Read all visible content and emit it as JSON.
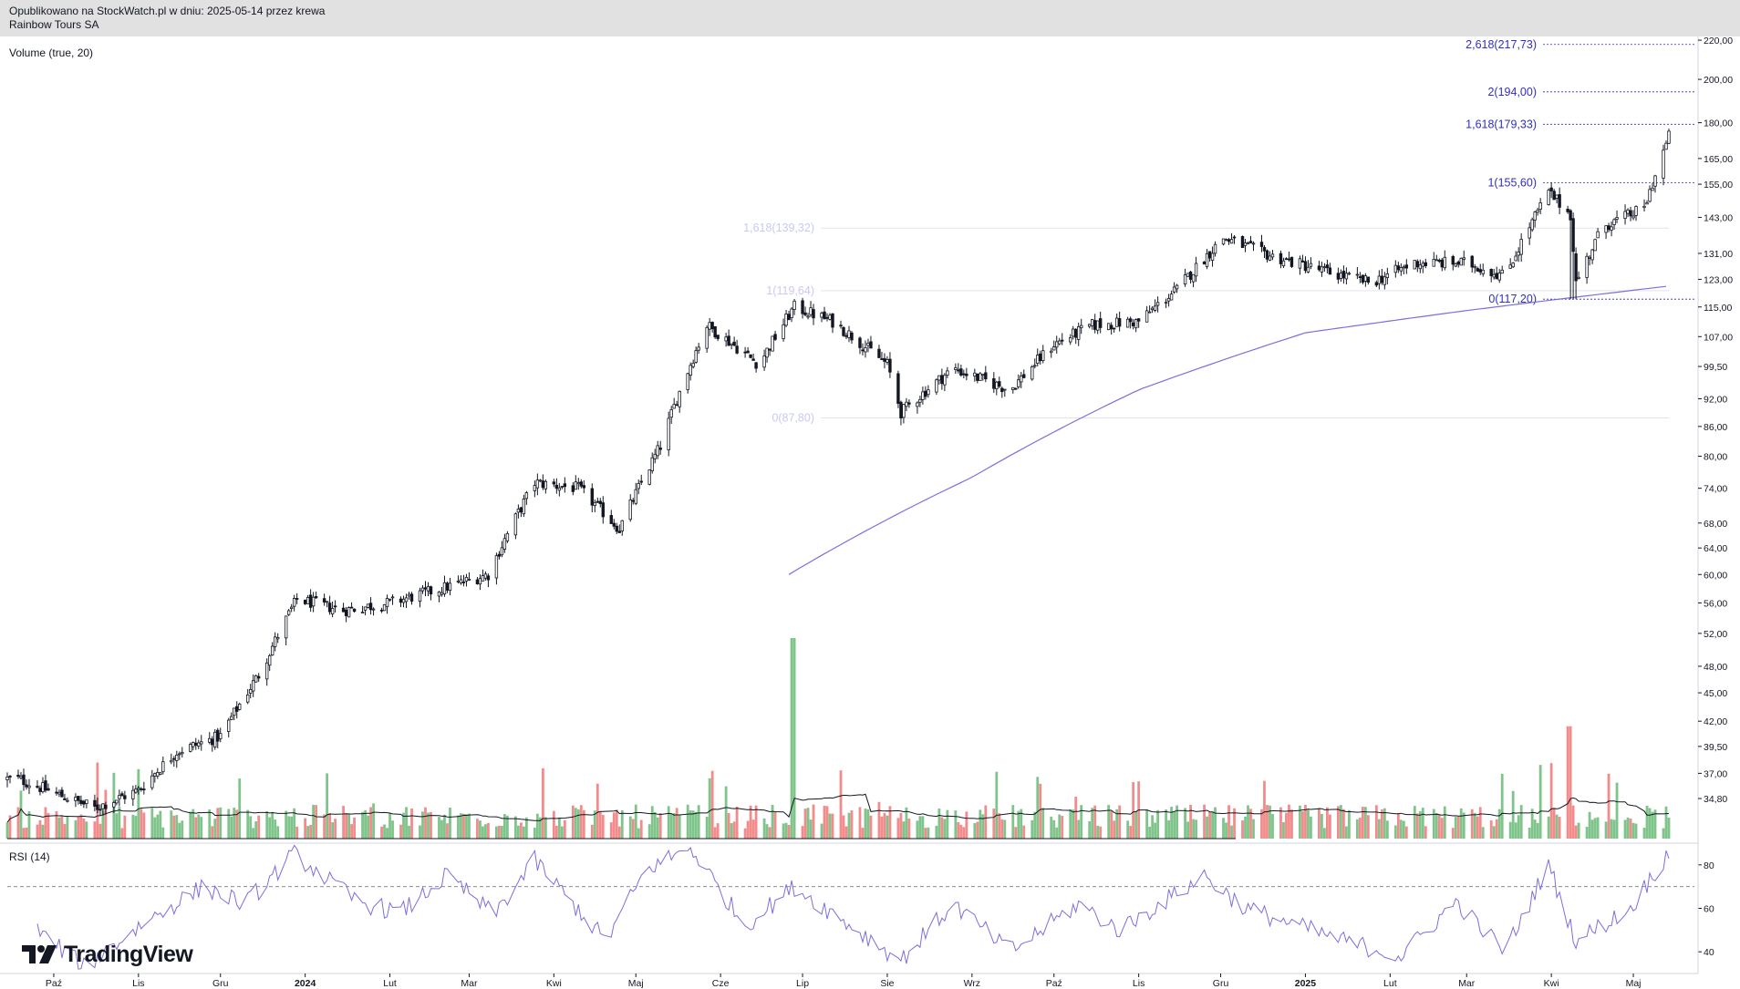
{
  "header": {
    "published": "Opublikowano na StockWatch.pl w dniu: 2025-05-14 przez krewa",
    "symbol": "Rainbow Tours SA"
  },
  "indicators": {
    "volume_label": "Volume (true, 20)",
    "rsi_label": "RSI (14)"
  },
  "logo": {
    "text": "TradingView",
    "icon": "tradingview-logo-icon"
  },
  "colors": {
    "up": "#26a69a",
    "down": "#ef5350",
    "volume_up": "#7fc48a",
    "volume_down": "#f28b8b",
    "ma_line": "#7b6fdd",
    "rsi_line": "#7b6fdd",
    "fib_old": "#c9c9f2",
    "fib_new": "#2f2fc0",
    "candle": "#131722"
  },
  "chart_data": [
    {
      "type": "candlestick",
      "title": "Rainbow Tours SA",
      "x_tick_labels": [
        "Paź",
        "Lis",
        "Gru",
        "2024",
        "Lut",
        "Mar",
        "Kwi",
        "Maj",
        "Cze",
        "Lip",
        "Sie",
        "Wrz",
        "Paź",
        "Lis",
        "Gru",
        "2025",
        "Lut",
        "Mar",
        "Kwi",
        "Maj"
      ],
      "y_scale": "log",
      "y_tick_labels": [
        "220,00",
        "200,00",
        "180,00",
        "165,00",
        "155,00",
        "143,00",
        "131,00",
        "123,00",
        "115,00",
        "107,00",
        "99,50",
        "92,00",
        "86,00",
        "80,00",
        "74,00",
        "68,00",
        "64,00",
        "60,00",
        "56,00",
        "52,00",
        "48,00",
        "45,00",
        "42,00",
        "39,50",
        "37,00",
        "34,80"
      ],
      "ylim": [
        33.0,
        222.0
      ],
      "price_path": [
        {
          "date": "2023-09-18",
          "close": 36.5
        },
        {
          "date": "2023-10-02",
          "close": 35.2
        },
        {
          "date": "2023-10-16",
          "close": 34.0
        },
        {
          "date": "2023-11-01",
          "close": 35.5
        },
        {
          "date": "2023-11-15",
          "close": 39.0
        },
        {
          "date": "2023-12-01",
          "close": 40.5
        },
        {
          "date": "2023-12-15",
          "close": 47.0
        },
        {
          "date": "2023-12-29",
          "close": 56.5
        },
        {
          "date": "2024-01-15",
          "close": 55.0
        },
        {
          "date": "2024-02-01",
          "close": 56.0
        },
        {
          "date": "2024-02-20",
          "close": 58.0
        },
        {
          "date": "2024-03-08",
          "close": 60.0
        },
        {
          "date": "2024-03-25",
          "close": 75.0
        },
        {
          "date": "2024-04-10",
          "close": 74.0
        },
        {
          "date": "2024-04-25",
          "close": 67.0
        },
        {
          "date": "2024-05-10",
          "close": 82.0
        },
        {
          "date": "2024-05-27",
          "close": 110.0
        },
        {
          "date": "2024-06-15",
          "close": 100.0
        },
        {
          "date": "2024-06-28",
          "close": 115.0
        },
        {
          "date": "2024-07-12",
          "close": 111.0
        },
        {
          "date": "2024-08-01",
          "close": 100.0
        },
        {
          "date": "2024-08-06",
          "close": 89.0
        },
        {
          "date": "2024-08-25",
          "close": 99.0
        },
        {
          "date": "2024-09-15",
          "close": 94.0
        },
        {
          "date": "2024-10-01",
          "close": 105.0
        },
        {
          "date": "2024-10-15",
          "close": 110.0
        },
        {
          "date": "2024-11-01",
          "close": 111.0
        },
        {
          "date": "2024-11-15",
          "close": 120.0
        },
        {
          "date": "2024-12-02",
          "close": 136.0
        },
        {
          "date": "2024-12-20",
          "close": 130.0
        },
        {
          "date": "2025-01-10",
          "close": 125.0
        },
        {
          "date": "2025-01-25",
          "close": 122.0
        },
        {
          "date": "2025-02-10",
          "close": 128.0
        },
        {
          "date": "2025-03-01",
          "close": 128.0
        },
        {
          "date": "2025-03-15",
          "close": 124.0
        },
        {
          "date": "2025-03-31",
          "close": 152.0
        },
        {
          "date": "2025-04-08",
          "close": 144.0
        },
        {
          "date": "2025-04-10",
          "close": 122.0
        },
        {
          "date": "2025-04-20",
          "close": 140.0
        },
        {
          "date": "2025-05-05",
          "close": 146.0
        },
        {
          "date": "2025-05-14",
          "close": 174.0
        }
      ],
      "moving_average_200": {
        "start": "2024-06-26",
        "values": [
          {
            "date": "2024-06-26",
            "value": 60.0
          },
          {
            "date": "2024-09-01",
            "value": 76.0
          },
          {
            "date": "2024-11-01",
            "value": 94.0
          },
          {
            "date": "2025-01-01",
            "value": 108.0
          },
          {
            "date": "2025-03-01",
            "value": 114.0
          },
          {
            "date": "2025-05-14",
            "value": 121.0
          }
        ]
      },
      "fibonacci_old": [
        {
          "label": "1,618(139,32)",
          "value": 139.32
        },
        {
          "label": "1(119,64)",
          "value": 119.64
        },
        {
          "label": "0(87,80)",
          "value": 87.8
        }
      ],
      "fibonacci_new": [
        {
          "label": "2,618(217,73)",
          "value": 217.73
        },
        {
          "label": "2(194,00)",
          "value": 194.0
        },
        {
          "label": "1,618(179,33)",
          "value": 179.33
        },
        {
          "label": "1(155,60)",
          "value": 155.6
        },
        {
          "label": "0(117,20)",
          "value": 117.2
        }
      ],
      "notable_volume_spikes": [
        {
          "date": "2024-06-28",
          "relative_height": 1.0
        },
        {
          "date": "2025-04-07",
          "relative_height": 0.56
        }
      ]
    },
    {
      "type": "line",
      "title": "RSI (14)",
      "y_tick_labels": [
        "80",
        "60",
        "40"
      ],
      "ylim": [
        30,
        90
      ],
      "levels": [
        70,
        30
      ],
      "rsi_path": [
        {
          "date": "2023-09-25",
          "value": 50
        },
        {
          "date": "2023-10-12",
          "value": 33
        },
        {
          "date": "2023-11-05",
          "value": 55
        },
        {
          "date": "2023-11-25",
          "value": 70
        },
        {
          "date": "2023-12-10",
          "value": 62
        },
        {
          "date": "2023-12-28",
          "value": 85
        },
        {
          "date": "2024-01-20",
          "value": 63
        },
        {
          "date": "2024-02-05",
          "value": 58
        },
        {
          "date": "2024-02-22",
          "value": 75
        },
        {
          "date": "2024-03-10",
          "value": 57
        },
        {
          "date": "2024-03-25",
          "value": 82
        },
        {
          "date": "2024-04-20",
          "value": 45
        },
        {
          "date": "2024-05-05",
          "value": 78
        },
        {
          "date": "2024-05-21",
          "value": 88
        },
        {
          "date": "2024-06-10",
          "value": 52
        },
        {
          "date": "2024-06-28",
          "value": 70
        },
        {
          "date": "2024-08-06",
          "value": 36
        },
        {
          "date": "2024-08-25",
          "value": 62
        },
        {
          "date": "2024-09-15",
          "value": 40
        },
        {
          "date": "2024-10-10",
          "value": 62
        },
        {
          "date": "2024-10-25",
          "value": 50
        },
        {
          "date": "2024-11-25",
          "value": 75
        },
        {
          "date": "2024-12-10",
          "value": 60
        },
        {
          "date": "2025-01-15",
          "value": 45
        },
        {
          "date": "2025-02-05",
          "value": 38
        },
        {
          "date": "2025-02-25",
          "value": 63
        },
        {
          "date": "2025-03-15",
          "value": 40
        },
        {
          "date": "2025-03-31",
          "value": 80
        },
        {
          "date": "2025-04-10",
          "value": 45
        },
        {
          "date": "2025-04-30",
          "value": 60
        },
        {
          "date": "2025-05-14",
          "value": 86
        }
      ]
    }
  ]
}
